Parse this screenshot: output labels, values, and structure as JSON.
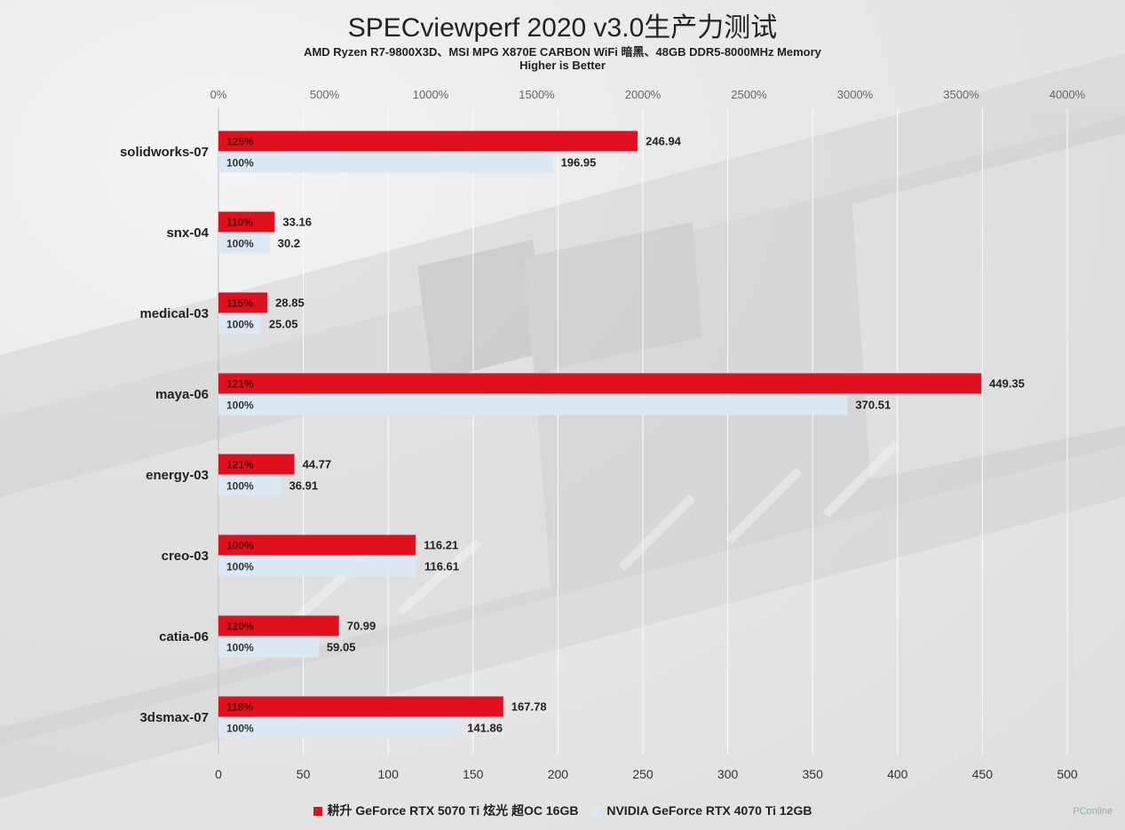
{
  "chart_data": {
    "type": "bar",
    "orientation": "horizontal",
    "title": "SPECviewperf 2020 v3.0生产力测试",
    "subtitle": "AMD Ryzen R7-9800X3D、MSI MPG X870E CARBON WiFi 暗黑、48GB DDR5-8000MHz Memory",
    "note": "Higher is Better",
    "categories": [
      "solidworks-07",
      "snx-04",
      "medical-03",
      "maya-06",
      "energy-03",
      "creo-03",
      "catia-06",
      "3dsmax-07"
    ],
    "series": [
      {
        "name": "耕升 GeForce RTX 5070 Ti 炫光 超OC 16GB",
        "color": "#e0101e",
        "values": [
          246.94,
          33.16,
          28.85,
          449.35,
          44.77,
          116.21,
          70.99,
          167.78
        ],
        "percent_labels": [
          "125%",
          "110%",
          "115%",
          "121%",
          "121%",
          "100%",
          "120%",
          "118%"
        ]
      },
      {
        "name": "NVIDIA GeForce RTX 4070 Ti 12GB",
        "color": "#dce8f3",
        "values": [
          196.95,
          30.2,
          25.05,
          370.51,
          36.91,
          116.61,
          59.05,
          141.86
        ],
        "percent_labels": [
          "100%",
          "100%",
          "100%",
          "100%",
          "100%",
          "100%",
          "100%",
          "100%"
        ]
      }
    ],
    "x_axis_bottom": {
      "range": [
        0,
        500
      ],
      "ticks": [
        "0",
        "50",
        "100",
        "150",
        "200",
        "250",
        "300",
        "350",
        "400",
        "450",
        "500"
      ]
    },
    "x_axis_top": {
      "range": [
        0,
        4000
      ],
      "ticks": [
        "0%",
        "500%",
        "1000%",
        "1500%",
        "2000%",
        "2500%",
        "3000%",
        "3500%",
        "4000%"
      ]
    },
    "grid": true,
    "legend_position": "bottom"
  },
  "watermark": "PConline"
}
